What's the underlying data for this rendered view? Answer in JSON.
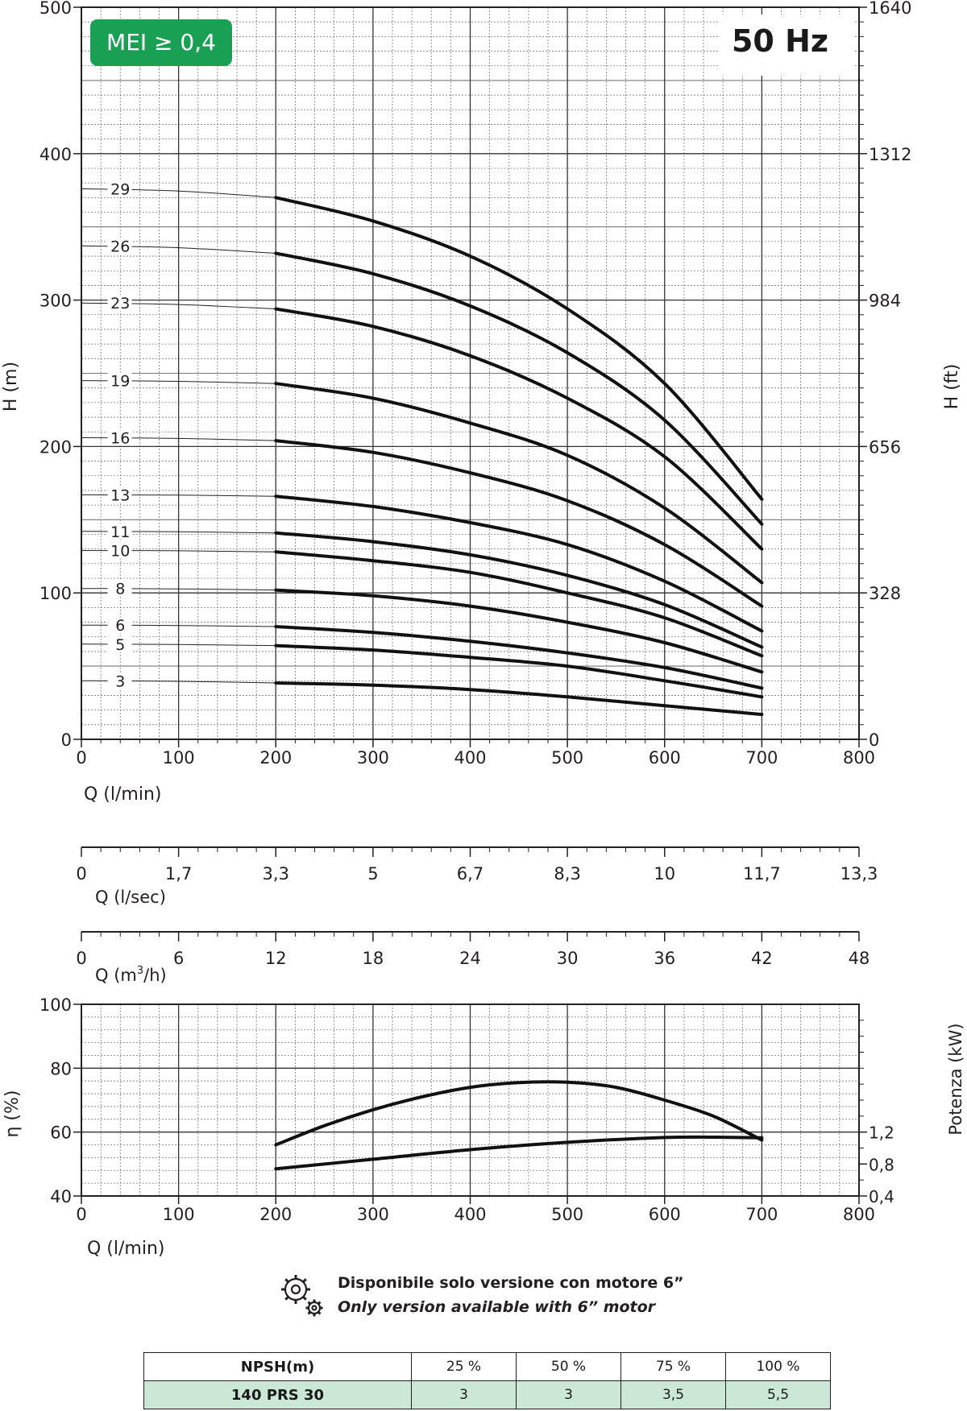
{
  "chart_data": [
    {
      "type": "line",
      "badge": "MEI ≥ 0,4",
      "frequency_label": "50 Hz",
      "xlabel": "Q  (l/min)",
      "ylabel": "H (m)",
      "y2label": "H (ft)",
      "xlim": [
        0,
        800
      ],
      "ylim": [
        0,
        500
      ],
      "x_ticks": [
        "0",
        "100",
        "200",
        "300",
        "400",
        "500",
        "600",
        "700",
        "800"
      ],
      "y_ticks": [
        "0",
        "100",
        "200",
        "300",
        "400",
        "500"
      ],
      "y2_ticks": [
        "0",
        "328",
        "656",
        "984",
        "1312",
        "1640"
      ],
      "grid": true,
      "series": [
        {
          "name": "3",
          "x": [
            0,
            200,
            300,
            400,
            500,
            600,
            700
          ],
          "y": [
            40,
            38.5,
            37,
            34,
            29,
            23,
            17
          ]
        },
        {
          "name": "5",
          "x": [
            0,
            200,
            300,
            400,
            500,
            600,
            700
          ],
          "y": [
            65,
            64,
            61,
            56,
            50,
            40,
            29
          ]
        },
        {
          "name": "6",
          "x": [
            0,
            200,
            300,
            400,
            500,
            600,
            700
          ],
          "y": [
            78,
            77,
            73,
            67,
            59,
            49,
            35
          ]
        },
        {
          "name": "8",
          "x": [
            0,
            200,
            300,
            400,
            500,
            600,
            700
          ],
          "y": [
            103,
            102,
            98,
            91,
            80,
            66,
            46
          ]
        },
        {
          "name": "10",
          "x": [
            0,
            200,
            300,
            400,
            500,
            600,
            700
          ],
          "y": [
            129,
            128,
            122,
            114,
            100,
            83,
            57
          ]
        },
        {
          "name": "11",
          "x": [
            0,
            200,
            300,
            400,
            500,
            600,
            700
          ],
          "y": [
            142,
            141,
            135,
            126,
            112,
            92,
            63
          ]
        },
        {
          "name": "13",
          "x": [
            0,
            200,
            300,
            400,
            500,
            600,
            700
          ],
          "y": [
            167,
            166,
            159,
            148,
            133,
            108,
            74
          ]
        },
        {
          "name": "16",
          "x": [
            0,
            200,
            300,
            400,
            500,
            600,
            700
          ],
          "y": [
            206,
            204,
            196,
            182,
            163,
            133,
            91
          ]
        },
        {
          "name": "19",
          "x": [
            0,
            200,
            300,
            400,
            500,
            600,
            700
          ],
          "y": [
            245,
            243,
            233,
            216,
            194,
            158,
            107
          ]
        },
        {
          "name": "23",
          "x": [
            0,
            200,
            300,
            400,
            500,
            600,
            700
          ],
          "y": [
            298,
            294,
            282,
            262,
            233,
            193,
            130
          ]
        },
        {
          "name": "26",
          "x": [
            0,
            200,
            300,
            400,
            500,
            600,
            700
          ],
          "y": [
            337,
            332,
            318,
            296,
            264,
            218,
            147
          ]
        },
        {
          "name": "29",
          "x": [
            0,
            200,
            300,
            400,
            500,
            600,
            700
          ],
          "y": [
            376,
            370,
            354,
            330,
            294,
            243,
            164
          ]
        }
      ]
    },
    {
      "type": "axis",
      "xlabel": "Q (l/sec)",
      "ticks": [
        "0",
        "1,7",
        "3,3",
        "5",
        "6,7",
        "8,3",
        "10",
        "11,7",
        "13,3"
      ]
    },
    {
      "type": "axis",
      "xlabel": "Q (m³/h)",
      "xlabel_main": "Q (m",
      "xlabel_sup": "3",
      "xlabel_tail": "/h)",
      "ticks": [
        "0",
        "6",
        "12",
        "18",
        "24",
        "30",
        "36",
        "42",
        "48"
      ]
    },
    {
      "type": "line",
      "xlabel": "Q (l/min)",
      "ylabel": "η (%)",
      "y2label": "Potenza (kW)",
      "xlim": [
        0,
        800
      ],
      "ylim": [
        40,
        100
      ],
      "x_ticks": [
        "0",
        "100",
        "200",
        "300",
        "400",
        "500",
        "600",
        "700",
        "800"
      ],
      "y_ticks": [
        "40",
        "60",
        "80",
        "100"
      ],
      "y2_ticks": [
        "0,4",
        "0,8",
        "1,2"
      ],
      "grid": true,
      "series": [
        {
          "x": [
            200,
            250,
            300,
            350,
            400,
            450,
            500,
            550,
            600,
            650,
            700
          ],
          "y": [
            56,
            62,
            67,
            71,
            74,
            75.5,
            75.6,
            74,
            70,
            65,
            57.5
          ]
        },
        {
          "x": [
            200,
            300,
            400,
            500,
            600,
            650,
            700
          ],
          "y": [
            48.5,
            51.5,
            54.5,
            56.8,
            58.3,
            58.4,
            58.2
          ]
        }
      ]
    }
  ],
  "note": {
    "icon": "gears-icon",
    "line1": "Disponibile solo versione con motore 6”",
    "line2": "Only version available with 6” motor"
  },
  "npsh_table": {
    "header": [
      "NPSH(m)",
      "25 %",
      "50 %",
      "75 %",
      "100 %"
    ],
    "row": [
      "140 PRS 30",
      "3",
      "3",
      "3,5",
      "5,5"
    ]
  },
  "colors": {
    "badge_bg": "#1aa055",
    "badge_text": "#ffffff",
    "curve": "#111111",
    "grid": "#555555",
    "table_row_bg": "#cbe8d6"
  }
}
